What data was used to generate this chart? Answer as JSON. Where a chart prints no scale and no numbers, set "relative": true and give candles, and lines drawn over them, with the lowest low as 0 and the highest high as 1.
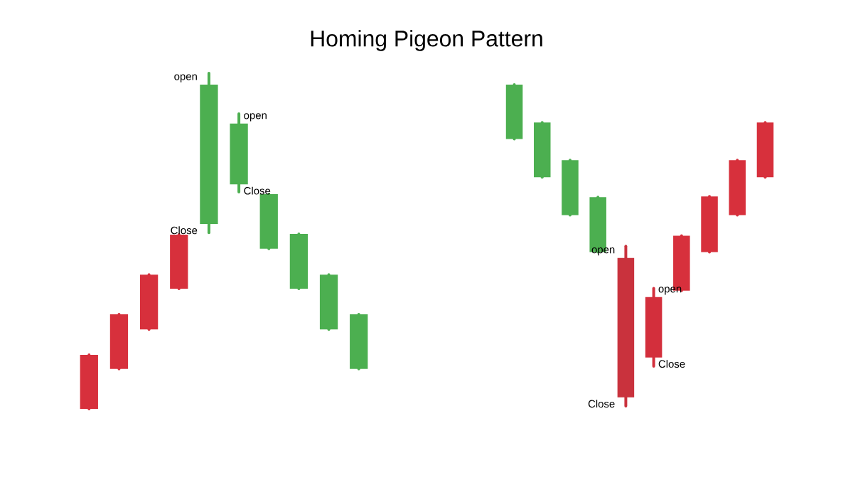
{
  "chart_data": [
    {
      "type": "candlestick",
      "title": "Homing Pigeon Pattern",
      "relative": true,
      "categories": [
        null,
        null,
        null,
        null,
        null,
        null,
        null,
        null,
        null,
        null
      ],
      "ohlc": [
        [
          0,
          0.161,
          0,
          0.161
        ],
        [
          0.119,
          0.282,
          0.119,
          0.282
        ],
        [
          0.237,
          0.4,
          0.237,
          0.4
        ],
        [
          0.358,
          0.519,
          0.358,
          0.519
        ],
        [
          0.966,
          1,
          0.525,
          0.551
        ],
        [
          0.85,
          0.879,
          0.646,
          0.669
        ],
        [
          0.64,
          0.64,
          0.477,
          0.477
        ],
        [
          0.521,
          0.521,
          0.358,
          0.358
        ],
        [
          0.4,
          0.4,
          0.237,
          0.237
        ],
        [
          0.282,
          0.282,
          0.119,
          0.119
        ]
      ],
      "colors": [
        "#d7303c",
        "#d7303c",
        "#d7303c",
        "#d7303c",
        "#4caf50",
        "#4caf50",
        "#4caf50",
        "#4caf50",
        "#4caf50",
        "#4caf50"
      ],
      "annotations": [
        "open",
        "Close",
        "open",
        "Close"
      ]
    },
    {
      "type": "candlestick",
      "relative": true,
      "categories": [
        null,
        null,
        null,
        null,
        null,
        null,
        null,
        null,
        null,
        null
      ],
      "ohlc": [
        [
          1,
          1,
          0.831,
          0.831
        ],
        [
          0.882,
          0.882,
          0.712,
          0.712
        ],
        [
          0.765,
          0.765,
          0.594,
          0.594
        ],
        [
          0.65,
          0.65,
          0.479,
          0.479
        ],
        [
          0.461,
          0.497,
          0,
          0.027
        ],
        [
          0.339,
          0.366,
          0.124,
          0.151
        ],
        [
          0.359,
          0.53,
          0.359,
          0.53
        ],
        [
          0.479,
          0.652,
          0.479,
          0.652
        ],
        [
          0.594,
          0.765,
          0.594,
          0.765
        ],
        [
          0.712,
          0.882,
          0.712,
          0.882
        ]
      ],
      "colors": [
        "#4caf50",
        "#4caf50",
        "#4caf50",
        "#4caf50",
        "#c9323d",
        "#d32f3c",
        "#d7303c",
        "#d7303c",
        "#d7303c",
        "#d7303c"
      ],
      "annotations": [
        "open",
        "Close",
        "open",
        "Close"
      ]
    }
  ]
}
